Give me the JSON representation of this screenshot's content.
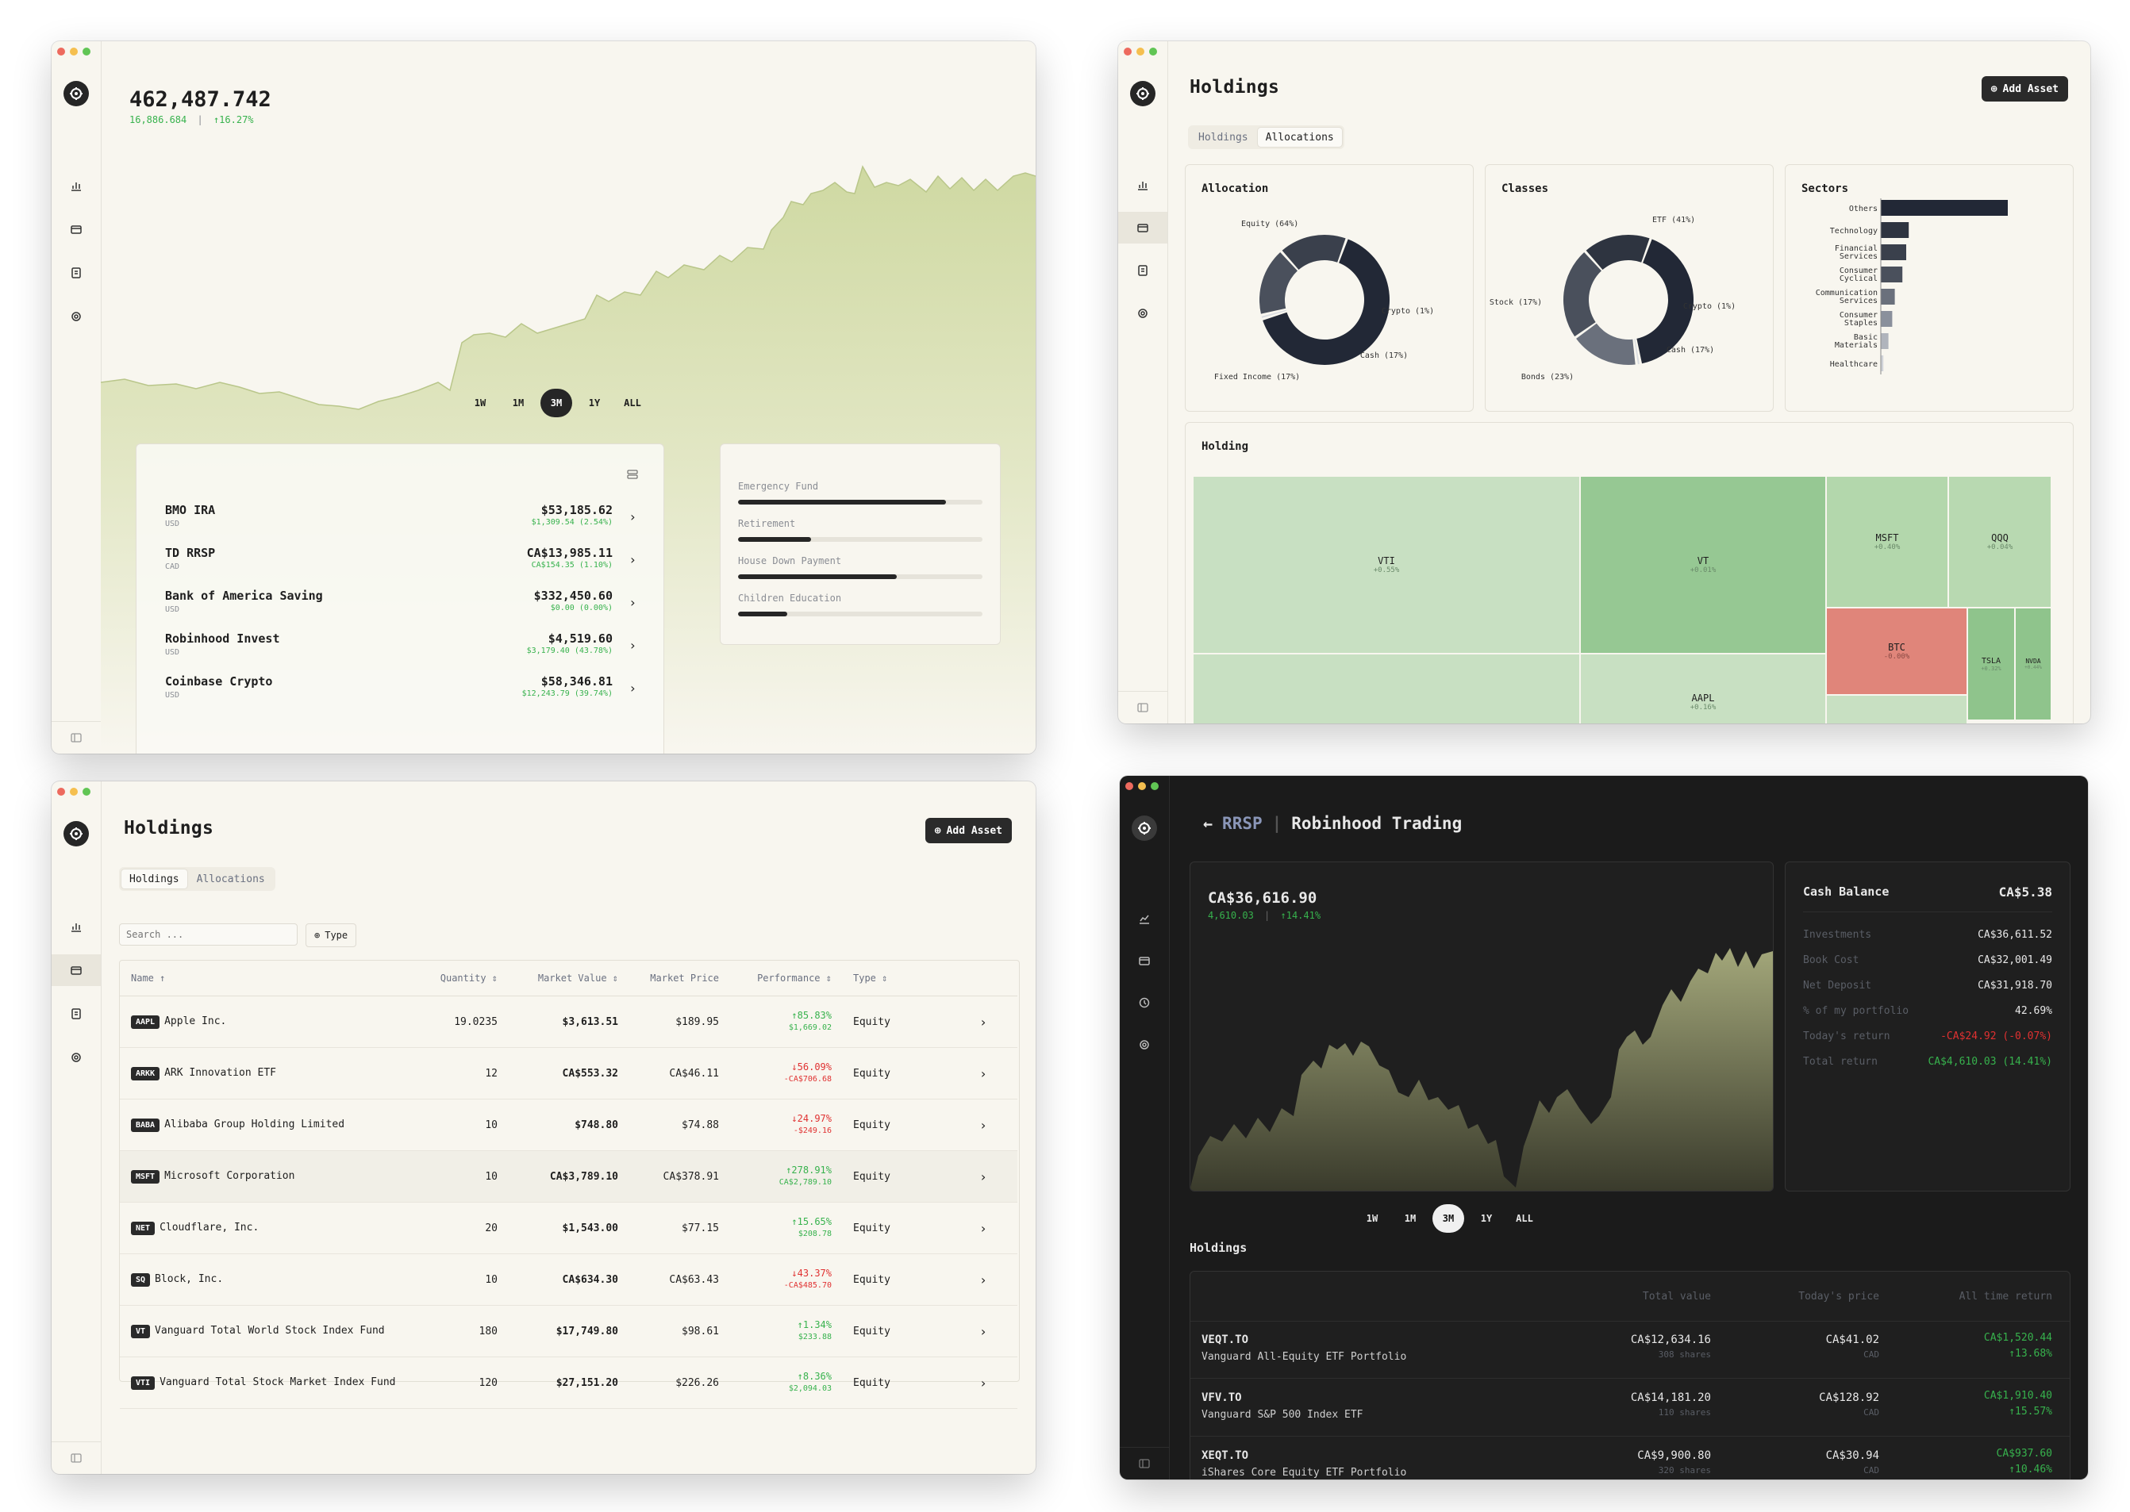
{
  "common": {
    "add_asset": "Add Asset"
  },
  "w1": {
    "total": "462,487.742",
    "gain": "16,886.684",
    "gain_pct": "↑16.27%",
    "ranges": [
      "1W",
      "1M",
      "3M",
      "1Y",
      "ALL"
    ],
    "active_range": "3M",
    "accounts": [
      {
        "name": "BMO IRA",
        "currency": "USD",
        "value": "$53,185.62",
        "gain": "$1,309.54 (2.54%)"
      },
      {
        "name": "TD RRSP",
        "currency": "CAD",
        "value": "CA$13,985.11",
        "gain": "CA$154.35 (1.10%)"
      },
      {
        "name": "Bank of America Saving",
        "currency": "USD",
        "value": "$332,450.60",
        "gain": "$0.00 (0.00%)"
      },
      {
        "name": "Robinhood Invest",
        "currency": "USD",
        "value": "$4,519.60",
        "gain": "$3,179.40 (43.78%)"
      },
      {
        "name": "Coinbase Crypto",
        "currency": "USD",
        "value": "$58,346.81",
        "gain": "$12,243.79 (39.74%)"
      }
    ],
    "goals": [
      {
        "label": "Emergency Fund",
        "progress": 0.85
      },
      {
        "label": "Retirement",
        "progress": 0.3
      },
      {
        "label": "House Down Payment",
        "progress": 0.65
      },
      {
        "label": "Children Education",
        "progress": 0.2
      }
    ]
  },
  "w2": {
    "title": "Holdings",
    "tabs": [
      "Holdings",
      "Allocations"
    ],
    "allocation": {
      "title": "Allocation",
      "slices": [
        {
          "label": "Equity (64%)",
          "value": 64
        },
        {
          "label": "Crypto (1%)",
          "value": 1
        },
        {
          "label": "Cash (17%)",
          "value": 17
        },
        {
          "label": "Fixed Income (17%)",
          "value": 17
        }
      ]
    },
    "classes": {
      "title": "Classes",
      "slices": [
        {
          "label": "ETF (41%)",
          "value": 41
        },
        {
          "label": "Crypto (1%)",
          "value": 1
        },
        {
          "label": "Cash (17%)",
          "value": 17
        },
        {
          "label": "Bonds (23%)",
          "value": 23
        },
        {
          "label": "Stock (17%)",
          "value": 17
        }
      ]
    },
    "sectors": {
      "title": "Sectors",
      "items": [
        {
          "label": "Others",
          "value": 100
        },
        {
          "label": "Technology",
          "value": 22
        },
        {
          "label": "Financial Services",
          "value": 20
        },
        {
          "label": "Consumer Cyclical",
          "value": 17
        },
        {
          "label": "Communication Services",
          "value": 11
        },
        {
          "label": "Consumer Staples",
          "value": 9
        },
        {
          "label": "Basic Materials",
          "value": 6
        },
        {
          "label": "Healthcare",
          "value": 2
        }
      ]
    },
    "holding_title": "Holding",
    "treemap": [
      {
        "sym": "VTI",
        "perf": "+0.55%"
      },
      {
        "sym": "VT",
        "perf": "+0.01%"
      },
      {
        "sym": "MSFT",
        "perf": "+0.40%"
      },
      {
        "sym": "QQQ",
        "perf": "+0.04%"
      },
      {
        "sym": "BTC",
        "perf": "-0.00%"
      },
      {
        "sym": "TSLA",
        "perf": "+0.32%"
      },
      {
        "sym": "NVDA",
        "perf": "+0.44%"
      },
      {
        "sym": "AAPL",
        "perf": "+0.16%"
      }
    ]
  },
  "w3": {
    "title": "Holdings",
    "tabs": [
      "Holdings",
      "Allocations"
    ],
    "search_placeholder": "Search ...",
    "type_filter": "Type",
    "columns": [
      "Name",
      "Quantity",
      "Market Value",
      "Market Price",
      "Performance",
      "Type"
    ],
    "rows": [
      {
        "sym": "AAPL",
        "name": "Apple Inc.",
        "qty": "19.0235",
        "mv": "$3,613.51",
        "mp": "$189.95",
        "perf": "↑85.83%",
        "perf2": "$1,669.02",
        "dir": "up",
        "type": "Equity"
      },
      {
        "sym": "ARKK",
        "name": "ARK Innovation ETF",
        "qty": "12",
        "mv": "CA$553.32",
        "mp": "CA$46.11",
        "perf": "↓56.09%",
        "perf2": "-CA$706.68",
        "dir": "down",
        "type": "Equity"
      },
      {
        "sym": "BABA",
        "name": "Alibaba Group Holding Limited",
        "qty": "10",
        "mv": "$748.80",
        "mp": "$74.88",
        "perf": "↓24.97%",
        "perf2": "-$249.16",
        "dir": "down",
        "type": "Equity"
      },
      {
        "sym": "MSFT",
        "name": "Microsoft Corporation",
        "qty": "10",
        "mv": "CA$3,789.10",
        "mp": "CA$378.91",
        "perf": "↑278.91%",
        "perf2": "CA$2,789.10",
        "dir": "up",
        "type": "Equity"
      },
      {
        "sym": "NET",
        "name": "Cloudflare, Inc.",
        "qty": "20",
        "mv": "$1,543.00",
        "mp": "$77.15",
        "perf": "↑15.65%",
        "perf2": "$208.78",
        "dir": "up",
        "type": "Equity"
      },
      {
        "sym": "SQ",
        "name": "Block, Inc.",
        "qty": "10",
        "mv": "CA$634.30",
        "mp": "CA$63.43",
        "perf": "↓43.37%",
        "perf2": "-CA$485.70",
        "dir": "down",
        "type": "Equity"
      },
      {
        "sym": "VT",
        "name": "Vanguard Total World Stock Index Fund",
        "qty": "180",
        "mv": "$17,749.80",
        "mp": "$98.61",
        "perf": "↑1.34%",
        "perf2": "$233.88",
        "dir": "up",
        "type": "Equity"
      },
      {
        "sym": "VTI",
        "name": "Vanguard Total Stock Market Index Fund",
        "qty": "120",
        "mv": "$27,151.20",
        "mp": "$226.26",
        "perf": "↑8.36%",
        "perf2": "$2,094.03",
        "dir": "up",
        "type": "Equity"
      }
    ]
  },
  "w4": {
    "crumb": "RRSP",
    "title": "Robinhood Trading",
    "balance": "CA$36,616.90",
    "gain": "4,610.03",
    "gain_pct": "↑14.41%",
    "ranges": [
      "1W",
      "1M",
      "3M",
      "1Y",
      "ALL"
    ],
    "active_range": "3M",
    "cash_title": "Cash Balance",
    "cash_value": "CA$5.38",
    "stats": [
      {
        "k": "Investments",
        "v": "CA$36,611.52",
        "c": "plain"
      },
      {
        "k": "Book Cost",
        "v": "CA$32,001.49",
        "c": "plain"
      },
      {
        "k": "Net Deposit",
        "v": "CA$31,918.70",
        "c": "plain"
      },
      {
        "k": "% of my portfolio",
        "v": "42.69%",
        "c": "plain"
      },
      {
        "k": "Today's return",
        "v": "-CA$24.92 (-0.07%)",
        "c": "red"
      },
      {
        "k": "Total return",
        "v": "CA$4,610.03 (14.41%)",
        "c": "green"
      }
    ],
    "holdings_title": "Holdings",
    "cols": [
      "Total value",
      "Today's price",
      "All time return"
    ],
    "rows": [
      {
        "sym": "VEQT.TO",
        "name": "Vanguard All-Equity ETF Portfolio",
        "tv": "CA$12,634.16",
        "sh": "308 shares",
        "price": "CA$41.02",
        "cur": "CAD",
        "ret": "CA$1,520.44",
        "retp": "↑13.68%"
      },
      {
        "sym": "VFV.TO",
        "name": "Vanguard S&P 500 Index ETF",
        "tv": "CA$14,181.20",
        "sh": "110 shares",
        "price": "CA$128.92",
        "cur": "CAD",
        "ret": "CA$1,910.40",
        "retp": "↑15.57%"
      },
      {
        "sym": "XEQT.TO",
        "name": "iShares Core Equity ETF Portfolio",
        "tv": "CA$9,900.80",
        "sh": "320 shares",
        "price": "CA$30.94",
        "cur": "CAD",
        "ret": "CA$937.60",
        "retp": "↑10.46%"
      }
    ]
  },
  "colors": {
    "accent_green": "#37b24d",
    "accent_red": "#e03131",
    "dark_ui": "#262626",
    "area_fill": "#d2dcaa"
  }
}
